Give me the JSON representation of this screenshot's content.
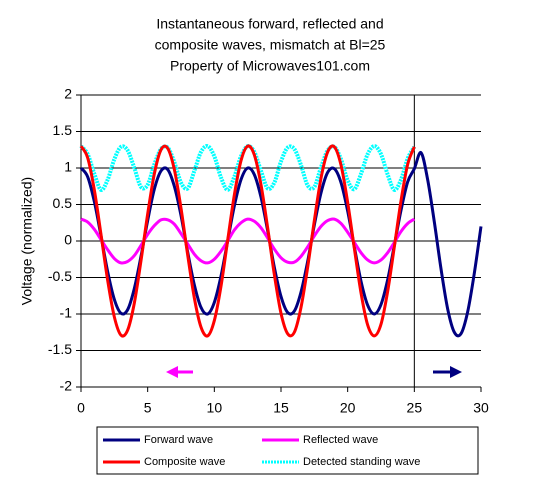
{
  "chart_data": {
    "type": "line",
    "title": [
      "Instantaneous forward, reflected and",
      "composite waves, mismatch at Bl=25",
      "Property of Microwaves101.com"
    ],
    "y_label": "Voltage (normalized)",
    "x": [
      0,
      0.5,
      1,
      1.5,
      2,
      2.5,
      3,
      3.5,
      4,
      4.5,
      5,
      5.5,
      6,
      6.5,
      7,
      7.5,
      8,
      8.5,
      9,
      9.5,
      10,
      10.5,
      11,
      11.5,
      12,
      12.5,
      13,
      13.5,
      14,
      14.5,
      15,
      15.5,
      16,
      16.5,
      17,
      17.5,
      18,
      18.5,
      19,
      19.5,
      20,
      20.5,
      21,
      21.5,
      22,
      22.5,
      23,
      23.5,
      24,
      24.5,
      25,
      25.5,
      26,
      26.5,
      27,
      27.5,
      28,
      28.5,
      29,
      29.5,
      30
    ],
    "series": [
      {
        "name": "Forward wave",
        "color": "#000080",
        "values": [
          1,
          0.88,
          0.54,
          0.07,
          -0.42,
          -0.8,
          -0.99,
          -0.94,
          -0.65,
          -0.21,
          0.28,
          0.71,
          0.96,
          0.98,
          0.75,
          0.35,
          -0.15,
          -0.6,
          -0.91,
          -1,
          -0.84,
          -0.48,
          0,
          0.48,
          0.84,
          1,
          0.91,
          0.6,
          0.14,
          -0.36,
          -0.76,
          -0.98,
          -0.96,
          -0.7,
          -0.28,
          0.22,
          0.66,
          0.94,
          0.99,
          0.8,
          0.41,
          -0.08,
          -0.55,
          -0.88,
          -1,
          -0.87,
          -0.53,
          -0.06,
          0.42,
          0.81,
          0.99,
          1.21,
          0.84,
          0.26,
          -0.38,
          -0.93,
          -1.25,
          -1.27,
          -0.97,
          -0.44,
          0.2
        ]
      },
      {
        "name": "Reflected wave",
        "color": "#ff00ff",
        "values": [
          0.3,
          0.26,
          0.16,
          0.02,
          -0.12,
          -0.24,
          -0.3,
          -0.28,
          -0.2,
          -0.06,
          0.09,
          0.21,
          0.29,
          0.29,
          0.23,
          0.1,
          -0.04,
          -0.18,
          -0.27,
          -0.3,
          -0.25,
          -0.14,
          0,
          0.15,
          0.25,
          0.3,
          0.27,
          0.18,
          0.04,
          -0.11,
          -0.23,
          -0.29,
          -0.29,
          -0.21,
          -0.08,
          0.07,
          0.2,
          0.28,
          0.3,
          0.24,
          0.12,
          -0.02,
          -0.16,
          -0.26,
          -0.3,
          -0.26,
          -0.16,
          -0.02,
          0.13,
          0.24,
          0.3,
          null,
          null,
          null,
          null,
          null,
          null,
          null,
          null,
          null,
          null
        ]
      },
      {
        "name": "Composite wave",
        "color": "#ff0000",
        "values": [
          1.3,
          1.14,
          0.7,
          0.09,
          -0.54,
          -1.04,
          -1.29,
          -1.22,
          -0.85,
          -0.27,
          0.37,
          0.92,
          1.25,
          1.27,
          0.98,
          0.45,
          -0.19,
          -0.78,
          -1.18,
          -1.3,
          -1.09,
          -0.62,
          0.01,
          0.63,
          1.1,
          1.3,
          1.18,
          0.77,
          0.18,
          -0.46,
          -0.99,
          -1.27,
          -1.25,
          -0.91,
          -0.36,
          0.28,
          0.86,
          1.22,
          1.29,
          1.04,
          0.53,
          -0.1,
          -0.71,
          -1.15,
          -1.3,
          -1.14,
          -0.69,
          -0.08,
          0.55,
          1.05,
          1.29,
          null,
          null,
          null,
          null,
          null,
          null,
          null,
          null,
          null,
          null
        ]
      },
      {
        "name": "Detected standing wave",
        "color": "#00ffff",
        "values": [
          1.3,
          1.19,
          0.92,
          0.7,
          0.84,
          1.12,
          1.29,
          1.24,
          1,
          0.74,
          0.77,
          1.05,
          1.26,
          1.28,
          1.08,
          0.8,
          0.72,
          0.96,
          1.22,
          1.3,
          1.16,
          0.87,
          0.7,
          0.88,
          1.16,
          1.3,
          1.22,
          0.96,
          0.72,
          0.8,
          1.09,
          1.28,
          1.26,
          1.04,
          0.76,
          0.74,
          1.01,
          1.24,
          1.29,
          1.12,
          0.83,
          0.71,
          0.92,
          1.19,
          1.3,
          1.19,
          0.91,
          0.7,
          0.84,
          1.13,
          1.29,
          null,
          null,
          null,
          null,
          null,
          null,
          null,
          null,
          null,
          null
        ]
      }
    ],
    "vline": 25,
    "xlim": [
      0,
      30
    ],
    "xticks": [
      0,
      5,
      10,
      15,
      20,
      25,
      30
    ],
    "ylim": [
      -2,
      2
    ],
    "yticks": [
      -2,
      -1.5,
      -1,
      -0.5,
      0,
      0.5,
      1,
      1.5,
      2
    ],
    "grid": true,
    "legend": "bottom"
  }
}
